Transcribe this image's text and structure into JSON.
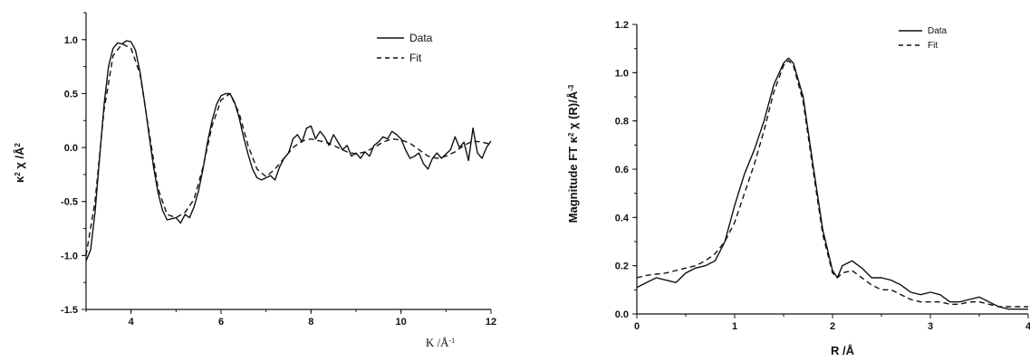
{
  "chart_data": [
    {
      "type": "line",
      "title": "",
      "xlabel": "K /Å",
      "xlabel_sup": "-1",
      "ylabel": "κ",
      "ylabel_sup": "2",
      "ylabel_rest": " χ /Å",
      "ylabel_sup2": "2",
      "xlim": [
        3,
        12
      ],
      "ylim": [
        -1.5,
        1.25
      ],
      "xticks": [
        "4",
        "6",
        "8",
        "10",
        "12"
      ],
      "yticks": [
        "-1.5",
        "-1.0",
        "-0.5",
        "0.0",
        "0.5",
        "1.0"
      ],
      "legend_position": "top-right",
      "series": [
        {
          "name": "Data",
          "style": "solid",
          "x": [
            3.0,
            3.1,
            3.2,
            3.3,
            3.4,
            3.5,
            3.6,
            3.7,
            3.8,
            3.9,
            4.0,
            4.1,
            4.2,
            4.3,
            4.4,
            4.5,
            4.6,
            4.7,
            4.8,
            4.9,
            5.0,
            5.1,
            5.2,
            5.3,
            5.4,
            5.5,
            5.6,
            5.7,
            5.8,
            5.9,
            6.0,
            6.1,
            6.2,
            6.3,
            6.4,
            6.5,
            6.6,
            6.7,
            6.8,
            6.9,
            7.0,
            7.1,
            7.2,
            7.3,
            7.4,
            7.5,
            7.6,
            7.7,
            7.8,
            7.9,
            8.0,
            8.1,
            8.2,
            8.3,
            8.4,
            8.5,
            8.6,
            8.7,
            8.8,
            8.9,
            9.0,
            9.1,
            9.2,
            9.3,
            9.4,
            9.5,
            9.6,
            9.7,
            9.8,
            9.9,
            10.0,
            10.1,
            10.2,
            10.3,
            10.4,
            10.5,
            10.6,
            10.7,
            10.8,
            10.9,
            11.0,
            11.1,
            11.2,
            11.3,
            11.4,
            11.5,
            11.6,
            11.7,
            11.8,
            11.9,
            12.0
          ],
          "y": [
            -1.05,
            -0.95,
            -0.6,
            -0.1,
            0.4,
            0.75,
            0.92,
            0.97,
            0.96,
            0.99,
            0.98,
            0.9,
            0.7,
            0.42,
            0.12,
            -0.18,
            -0.42,
            -0.58,
            -0.67,
            -0.66,
            -0.65,
            -0.7,
            -0.62,
            -0.65,
            -0.55,
            -0.4,
            -0.2,
            0.05,
            0.25,
            0.4,
            0.48,
            0.5,
            0.5,
            0.42,
            0.28,
            0.1,
            -0.06,
            -0.2,
            -0.28,
            -0.3,
            -0.28,
            -0.26,
            -0.3,
            -0.18,
            -0.1,
            -0.05,
            0.08,
            0.12,
            0.05,
            0.18,
            0.2,
            0.08,
            0.15,
            0.1,
            0.02,
            0.12,
            0.05,
            -0.02,
            0.02,
            -0.08,
            -0.05,
            -0.1,
            -0.04,
            -0.08,
            0.02,
            0.05,
            0.1,
            0.08,
            0.15,
            0.12,
            0.08,
            -0.02,
            -0.1,
            -0.08,
            -0.05,
            -0.15,
            -0.2,
            -0.1,
            -0.05,
            -0.1,
            -0.06,
            -0.02,
            0.1,
            0.0,
            0.05,
            -0.12,
            0.18,
            -0.05,
            -0.1,
            0.0,
            0.06
          ]
        },
        {
          "name": "Fit",
          "style": "dashed",
          "x": [
            3.0,
            3.2,
            3.4,
            3.6,
            3.8,
            4.0,
            4.2,
            4.4,
            4.6,
            4.8,
            5.0,
            5.2,
            5.4,
            5.6,
            5.8,
            6.0,
            6.2,
            6.4,
            6.6,
            6.8,
            7.0,
            7.2,
            7.4,
            7.6,
            7.8,
            8.0,
            8.2,
            8.4,
            8.6,
            8.8,
            9.0,
            9.2,
            9.4,
            9.6,
            9.8,
            10.0,
            10.2,
            10.4,
            10.6,
            10.8,
            11.0,
            11.2,
            11.4,
            11.6,
            11.8,
            12.0
          ],
          "y": [
            -1.0,
            -0.5,
            0.35,
            0.85,
            0.96,
            0.92,
            0.68,
            0.15,
            -0.38,
            -0.62,
            -0.65,
            -0.6,
            -0.48,
            -0.18,
            0.2,
            0.44,
            0.5,
            0.32,
            0.02,
            -0.2,
            -0.27,
            -0.2,
            -0.1,
            0.0,
            0.06,
            0.08,
            0.06,
            0.04,
            0.0,
            -0.04,
            -0.06,
            -0.04,
            0.0,
            0.05,
            0.08,
            0.07,
            0.04,
            -0.02,
            -0.08,
            -0.1,
            -0.08,
            -0.04,
            0.02,
            0.06,
            0.05,
            0.03
          ]
        }
      ]
    },
    {
      "type": "line",
      "title": "",
      "xlabel": "R /Å",
      "ylabel": "Magnitude FT κ",
      "ylabel_sup": "2",
      "ylabel_rest": " χ (R)/Å",
      "ylabel_sup2": "-3",
      "xlim": [
        0,
        4
      ],
      "ylim": [
        0,
        1.2
      ],
      "xticks": [
        "0",
        "1",
        "2",
        "3",
        "4"
      ],
      "yticks": [
        "0.0",
        "0.2",
        "0.4",
        "0.6",
        "0.8",
        "1.0",
        "1.2"
      ],
      "legend_position": "top-right",
      "series": [
        {
          "name": "Data",
          "style": "solid",
          "x": [
            0.0,
            0.1,
            0.2,
            0.3,
            0.4,
            0.5,
            0.6,
            0.7,
            0.8,
            0.9,
            1.0,
            1.1,
            1.2,
            1.3,
            1.4,
            1.5,
            1.55,
            1.6,
            1.7,
            1.8,
            1.9,
            2.0,
            2.05,
            2.1,
            2.2,
            2.3,
            2.4,
            2.5,
            2.6,
            2.7,
            2.8,
            2.9,
            3.0,
            3.1,
            3.2,
            3.3,
            3.4,
            3.5,
            3.6,
            3.7,
            3.8,
            3.9,
            4.0
          ],
          "y": [
            0.11,
            0.13,
            0.15,
            0.14,
            0.13,
            0.17,
            0.19,
            0.2,
            0.22,
            0.3,
            0.45,
            0.58,
            0.68,
            0.8,
            0.95,
            1.04,
            1.06,
            1.04,
            0.9,
            0.62,
            0.35,
            0.18,
            0.15,
            0.2,
            0.22,
            0.19,
            0.15,
            0.15,
            0.14,
            0.12,
            0.09,
            0.08,
            0.09,
            0.08,
            0.05,
            0.05,
            0.06,
            0.07,
            0.05,
            0.03,
            0.02,
            0.02,
            0.02
          ]
        },
        {
          "name": "Fit",
          "style": "dashed",
          "x": [
            0.0,
            0.1,
            0.2,
            0.3,
            0.4,
            0.5,
            0.6,
            0.7,
            0.8,
            0.9,
            1.0,
            1.1,
            1.2,
            1.3,
            1.4,
            1.5,
            1.55,
            1.6,
            1.7,
            1.8,
            1.9,
            2.0,
            2.05,
            2.1,
            2.2,
            2.3,
            2.4,
            2.5,
            2.6,
            2.7,
            2.8,
            2.9,
            3.0,
            3.1,
            3.2,
            3.3,
            3.4,
            3.5,
            3.6,
            3.7,
            3.8,
            3.9,
            4.0
          ],
          "y": [
            0.15,
            0.16,
            0.165,
            0.17,
            0.18,
            0.19,
            0.2,
            0.22,
            0.25,
            0.3,
            0.38,
            0.5,
            0.62,
            0.76,
            0.92,
            1.03,
            1.05,
            1.03,
            0.88,
            0.6,
            0.33,
            0.17,
            0.15,
            0.17,
            0.18,
            0.15,
            0.12,
            0.1,
            0.1,
            0.08,
            0.06,
            0.05,
            0.05,
            0.05,
            0.04,
            0.04,
            0.05,
            0.05,
            0.04,
            0.03,
            0.03,
            0.03,
            0.03
          ]
        }
      ]
    }
  ]
}
